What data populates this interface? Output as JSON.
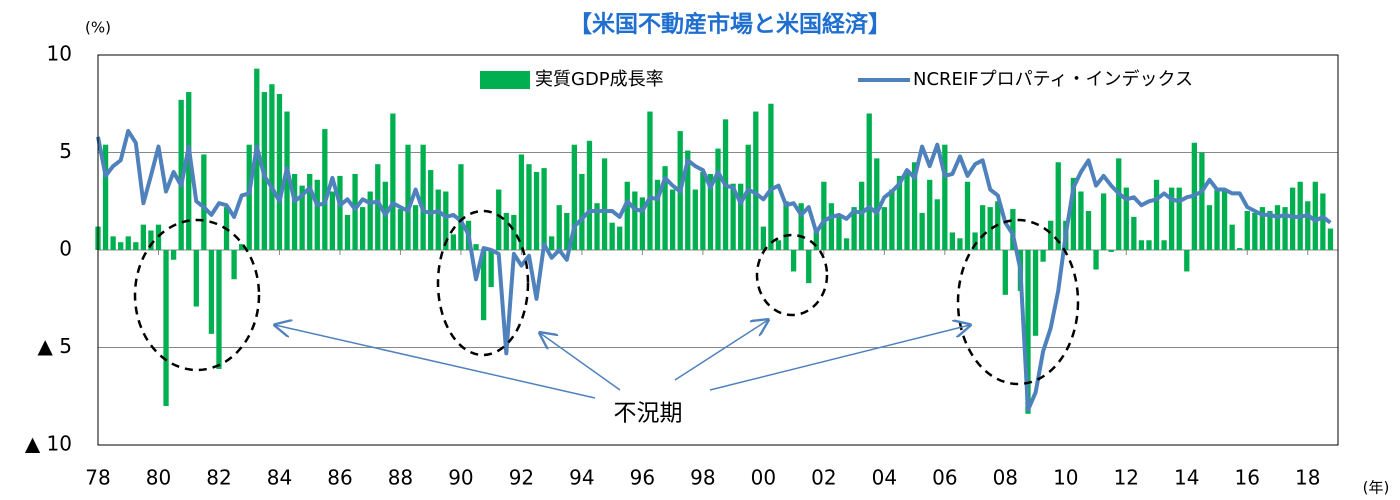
{
  "chart_data": {
    "type": "bar-line",
    "title": "【米国不動産市場と米国経済】",
    "y_unit": "(%)",
    "x_unit": "(年)",
    "annotation": "不況期",
    "xlim": [
      1978,
      2019
    ],
    "ylim": [
      -10,
      10
    ],
    "grid": true,
    "yticks": [
      10,
      5,
      0,
      {
        "value": -5,
        "label": "▲ 5"
      },
      {
        "value": -10,
        "label": "▲ 10"
      }
    ],
    "xticks": [
      {
        "value": 1978,
        "label": "78"
      },
      {
        "value": 1980,
        "label": "80"
      },
      {
        "value": 1982,
        "label": "82"
      },
      {
        "value": 1984,
        "label": "84"
      },
      {
        "value": 1986,
        "label": "86"
      },
      {
        "value": 1988,
        "label": "88"
      },
      {
        "value": 1990,
        "label": "90"
      },
      {
        "value": 1992,
        "label": "92"
      },
      {
        "value": 1994,
        "label": "94"
      },
      {
        "value": 1996,
        "label": "96"
      },
      {
        "value": 1998,
        "label": "98"
      },
      {
        "value": 2000,
        "label": "00"
      },
      {
        "value": 2002,
        "label": "02"
      },
      {
        "value": 2004,
        "label": "04"
      },
      {
        "value": 2006,
        "label": "06"
      },
      {
        "value": 2008,
        "label": "08"
      },
      {
        "value": 2010,
        "label": "10"
      },
      {
        "value": 2012,
        "label": "12"
      },
      {
        "value": 2014,
        "label": "14"
      },
      {
        "value": 2016,
        "label": "16"
      },
      {
        "value": 2018,
        "label": "18"
      }
    ],
    "x": [
      1978,
      1978.25,
      1978.5,
      1978.75,
      1979,
      1979.25,
      1979.5,
      1979.75,
      1980,
      1980.25,
      1980.5,
      1980.75,
      1981,
      1981.25,
      1981.5,
      1981.75,
      1982,
      1982.25,
      1982.5,
      1982.75,
      1983,
      1983.25,
      1983.5,
      1983.75,
      1984,
      1984.25,
      1984.5,
      1984.75,
      1985,
      1985.25,
      1985.5,
      1985.75,
      1986,
      1986.25,
      1986.5,
      1986.75,
      1987,
      1987.25,
      1987.5,
      1987.75,
      1988,
      1988.25,
      1988.5,
      1988.75,
      1989,
      1989.25,
      1989.5,
      1989.75,
      1990,
      1990.25,
      1990.5,
      1990.75,
      1991,
      1991.25,
      1991.5,
      1991.75,
      1992,
      1992.25,
      1992.5,
      1992.75,
      1993,
      1993.25,
      1993.5,
      1993.75,
      1994,
      1994.25,
      1994.5,
      1994.75,
      1995,
      1995.25,
      1995.5,
      1995.75,
      1996,
      1996.25,
      1996.5,
      1996.75,
      1997,
      1997.25,
      1997.5,
      1997.75,
      1998,
      1998.25,
      1998.5,
      1998.75,
      1999,
      1999.25,
      1999.5,
      1999.75,
      2000,
      2000.25,
      2000.5,
      2000.75,
      2001,
      2001.25,
      2001.5,
      2001.75,
      2002,
      2002.25,
      2002.5,
      2002.75,
      2003,
      2003.25,
      2003.5,
      2003.75,
      2004,
      2004.25,
      2004.5,
      2004.75,
      2005,
      2005.25,
      2005.5,
      2005.75,
      2006,
      2006.25,
      2006.5,
      2006.75,
      2007,
      2007.25,
      2007.5,
      2007.75,
      2008,
      2008.25,
      2008.5,
      2008.75,
      2009,
      2009.25,
      2009.5,
      2009.75,
      2010,
      2010.25,
      2010.5,
      2010.75,
      2011,
      2011.25,
      2011.5,
      2011.75,
      2012,
      2012.25,
      2012.5,
      2012.75,
      2013,
      2013.25,
      2013.5,
      2013.75,
      2014,
      2014.25,
      2014.5,
      2014.75,
      2015,
      2015.25,
      2015.5,
      2015.75,
      2016,
      2016.25,
      2016.5,
      2016.75,
      2017,
      2017.25,
      2017.5,
      2017.75,
      2018,
      2018.25,
      2018.5,
      2018.75
    ],
    "series": [
      {
        "name": "実質GDP成長率",
        "kind": "bar",
        "color": "#00b050",
        "values": [
          1.2,
          5.4,
          0.7,
          0.4,
          0.7,
          0.4,
          1.3,
          1.0,
          1.3,
          -8.0,
          -0.5,
          7.7,
          8.1,
          -2.9,
          4.9,
          -4.3,
          -6.1,
          2.2,
          -1.5,
          0.3,
          5.4,
          9.3,
          8.1,
          8.5,
          8.0,
          7.1,
          3.9,
          3.3,
          3.9,
          3.6,
          6.2,
          3.0,
          3.8,
          1.8,
          3.9,
          2.2,
          3.0,
          4.4,
          3.5,
          7.0,
          2.1,
          5.4,
          2.3,
          5.4,
          4.1,
          3.1,
          3.0,
          0.8,
          4.4,
          1.5,
          0.3,
          -3.6,
          -1.9,
          3.1,
          1.9,
          1.8,
          4.9,
          4.4,
          4.0,
          4.2,
          0.7,
          2.3,
          1.9,
          5.4,
          3.9,
          5.6,
          2.4,
          4.7,
          1.4,
          1.2,
          3.5,
          3.0,
          2.7,
          7.1,
          3.6,
          4.3,
          3.1,
          6.1,
          5.1,
          3.1,
          4.0,
          3.9,
          5.2,
          6.7,
          3.4,
          3.4,
          5.4,
          7.1,
          1.2,
          7.5,
          0.5,
          2.5,
          -1.1,
          2.4,
          -1.7,
          1.1,
          3.5,
          2.4,
          1.8,
          0.6,
          2.2,
          3.5,
          7.0,
          4.7,
          2.2,
          3.1,
          3.8,
          4.1,
          4.5,
          1.9,
          3.6,
          2.6,
          5.4,
          0.9,
          0.6,
          3.5,
          0.9,
          2.3,
          2.2,
          2.5,
          -2.3,
          2.1,
          -2.1,
          -8.4,
          -4.4,
          -0.6,
          1.5,
          4.5,
          1.5,
          3.7,
          3.0,
          2.0,
          -1.0,
          2.9,
          -0.1,
          4.7,
          3.2,
          1.7,
          0.5,
          0.5,
          3.6,
          0.5,
          3.2,
          3.2,
          -1.1,
          5.5,
          5.0,
          2.3,
          3.2,
          3.0,
          1.3,
          0.1,
          2.0,
          1.9,
          2.2,
          2.0,
          2.3,
          2.2,
          3.2,
          3.5,
          2.5,
          3.5,
          2.9,
          1.1
        ]
      },
      {
        "name": "NCREIFプロパティ・インデックス",
        "kind": "line",
        "color": "#4f81bd",
        "values": [
          5.8,
          3.8,
          4.3,
          4.6,
          6.1,
          5.5,
          2.4,
          3.8,
          5.3,
          3.0,
          4.0,
          3.3,
          5.3,
          2.5,
          2.2,
          1.8,
          2.4,
          2.3,
          1.7,
          2.8,
          2.9,
          5.3,
          3.8,
          3.2,
          2.5,
          4.2,
          2.5,
          2.8,
          3.2,
          2.3,
          2.4,
          3.7,
          2.3,
          2.6,
          2.1,
          2.6,
          2.4,
          2.5,
          1.8,
          2.4,
          2.2,
          2.0,
          3.1,
          2.0,
          1.9,
          2.0,
          1.7,
          1.8,
          1.5,
          0.8,
          -1.5,
          0.1,
          0.0,
          -0.2,
          -5.3,
          -0.2,
          -0.8,
          -0.3,
          -2.5,
          0.3,
          -0.4,
          0.0,
          -0.5,
          1.2,
          1.6,
          2.0,
          2.0,
          2.0,
          2.0,
          1.7,
          2.5,
          2.1,
          2.0,
          2.7,
          2.6,
          3.7,
          3.3,
          3.0,
          4.6,
          4.3,
          4.1,
          3.2,
          4.0,
          3.3,
          3.2,
          2.4,
          3.1,
          2.9,
          2.6,
          3.1,
          3.3,
          2.3,
          2.4,
          1.8,
          2.2,
          0.9,
          1.5,
          1.7,
          1.8,
          1.6,
          2.0,
          1.9,
          2.2,
          1.9,
          2.7,
          3.0,
          3.4,
          4.1,
          3.7,
          5.3,
          4.3,
          5.4,
          3.8,
          3.9,
          4.8,
          3.8,
          4.4,
          4.6,
          3.1,
          2.8,
          1.4,
          0.8,
          -1.0,
          -8.2,
          -7.3,
          -5.2,
          -4.0,
          -2.1,
          0.8,
          3.2,
          4.0,
          4.6,
          3.3,
          3.8,
          3.3,
          2.9,
          2.6,
          2.7,
          2.3,
          2.5,
          2.6,
          2.9,
          2.6,
          2.5,
          2.7,
          2.8,
          3.0,
          3.6,
          3.1,
          3.1,
          2.9,
          2.9,
          2.2,
          2.0,
          1.8,
          1.8,
          1.7,
          1.8,
          1.7,
          1.7,
          1.8,
          1.5,
          1.7,
          1.4
        ]
      }
    ]
  }
}
